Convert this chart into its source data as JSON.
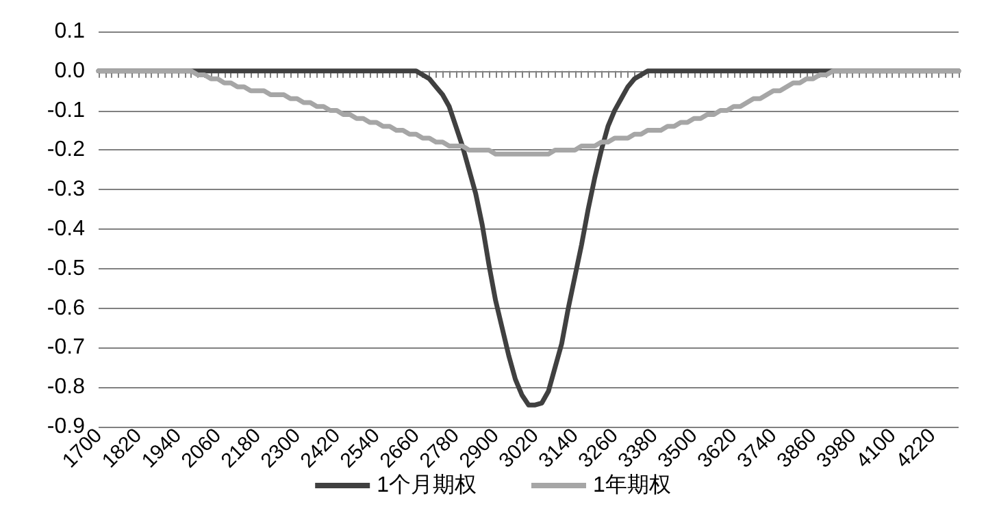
{
  "chart_data": {
    "type": "line",
    "categories": [
      "1700",
      null,
      null,
      null,
      null,
      null,
      "1820",
      null,
      null,
      null,
      null,
      null,
      "1940",
      null,
      null,
      null,
      null,
      null,
      "2060",
      null,
      null,
      null,
      null,
      null,
      "2180",
      null,
      null,
      null,
      null,
      null,
      "2300",
      null,
      null,
      null,
      null,
      null,
      "2420",
      null,
      null,
      null,
      null,
      null,
      "2540",
      null,
      null,
      null,
      null,
      null,
      "2660",
      null,
      null,
      null,
      null,
      null,
      "2780",
      null,
      null,
      null,
      null,
      null,
      "2900",
      null,
      null,
      null,
      null,
      null,
      "3020",
      null,
      null,
      null,
      null,
      null,
      "3140",
      null,
      null,
      null,
      null,
      null,
      "3260",
      null,
      null,
      null,
      null,
      null,
      "3380",
      null,
      null,
      null,
      null,
      null,
      "3500",
      null,
      null,
      null,
      null,
      null,
      "3620",
      null,
      null,
      null,
      null,
      null,
      "3740",
      null,
      null,
      null,
      null,
      null,
      "3860",
      null,
      null,
      null,
      null,
      null,
      "3980",
      null,
      null,
      null,
      null,
      null,
      "4100",
      null,
      null,
      null,
      null,
      null,
      "4220",
      null,
      null,
      null,
      null
    ],
    "series": [
      {
        "name": "1个月期权",
        "color": "#404040",
        "values": [
          0,
          0,
          0,
          0,
          0,
          0,
          0,
          0,
          0,
          0,
          0,
          0,
          0,
          0,
          0,
          0,
          0,
          0,
          0,
          0,
          0,
          0,
          0,
          0,
          0,
          0,
          0,
          0,
          0,
          0,
          0,
          0,
          0,
          0,
          0,
          0,
          0,
          0,
          0,
          0,
          0,
          0,
          0,
          0,
          0,
          0,
          0,
          0,
          0,
          -0.01,
          -0.02,
          -0.04,
          -0.06,
          -0.09,
          -0.14,
          -0.19,
          -0.25,
          -0.31,
          -0.39,
          -0.49,
          -0.58,
          -0.65,
          -0.72,
          -0.78,
          -0.82,
          -0.845,
          -0.845,
          -0.84,
          -0.81,
          -0.75,
          -0.69,
          -0.6,
          -0.52,
          -0.44,
          -0.35,
          -0.27,
          -0.2,
          -0.14,
          -0.1,
          -0.07,
          -0.04,
          -0.02,
          -0.01,
          0,
          0,
          0,
          0,
          0,
          0,
          0,
          0,
          0,
          0,
          0,
          0,
          0,
          0,
          0,
          0,
          0,
          0,
          0,
          0,
          0,
          0,
          0,
          0,
          0,
          0,
          0,
          0,
          0,
          0,
          0,
          0,
          0,
          0,
          0,
          0,
          0,
          0,
          0,
          0,
          0,
          0,
          0,
          0,
          0,
          0,
          0,
          0
        ]
      },
      {
        "name": "1年期权",
        "color": "#a6a6a6",
        "values": [
          0,
          0,
          0,
          0,
          0,
          0,
          0,
          0,
          0,
          0,
          0,
          0,
          0,
          0,
          0,
          -0.01,
          -0.01,
          -0.02,
          -0.02,
          -0.03,
          -0.03,
          -0.04,
          -0.04,
          -0.05,
          -0.05,
          -0.05,
          -0.06,
          -0.06,
          -0.06,
          -0.07,
          -0.07,
          -0.08,
          -0.08,
          -0.09,
          -0.09,
          -0.1,
          -0.1,
          -0.11,
          -0.11,
          -0.12,
          -0.12,
          -0.13,
          -0.13,
          -0.14,
          -0.14,
          -0.15,
          -0.15,
          -0.16,
          -0.16,
          -0.17,
          -0.17,
          -0.18,
          -0.18,
          -0.19,
          -0.19,
          -0.19,
          -0.2,
          -0.2,
          -0.2,
          -0.2,
          -0.21,
          -0.21,
          -0.21,
          -0.21,
          -0.21,
          -0.21,
          -0.21,
          -0.21,
          -0.21,
          -0.2,
          -0.2,
          -0.2,
          -0.2,
          -0.19,
          -0.19,
          -0.19,
          -0.18,
          -0.18,
          -0.17,
          -0.17,
          -0.17,
          -0.16,
          -0.16,
          -0.15,
          -0.15,
          -0.15,
          -0.14,
          -0.14,
          -0.13,
          -0.13,
          -0.12,
          -0.12,
          -0.11,
          -0.11,
          -0.1,
          -0.1,
          -0.09,
          -0.09,
          -0.08,
          -0.07,
          -0.07,
          -0.06,
          -0.05,
          -0.05,
          -0.04,
          -0.03,
          -0.03,
          -0.02,
          -0.02,
          -0.01,
          -0.01,
          0,
          0,
          0,
          0,
          0,
          0,
          0,
          0,
          0,
          0,
          0,
          0,
          0,
          0,
          0,
          0,
          0,
          0,
          0,
          0
        ]
      }
    ],
    "ylim": [
      -0.9,
      0.1
    ],
    "yticks": [
      0.1,
      {
        "value": 0,
        "label": "0.0"
      },
      -0.1,
      -0.2,
      -0.3,
      -0.4,
      -0.5,
      -0.6,
      -0.7,
      -0.8,
      -0.9
    ],
    "grid": "y",
    "legend": "bottom",
    "marker": "none",
    "line_style": "solid"
  }
}
